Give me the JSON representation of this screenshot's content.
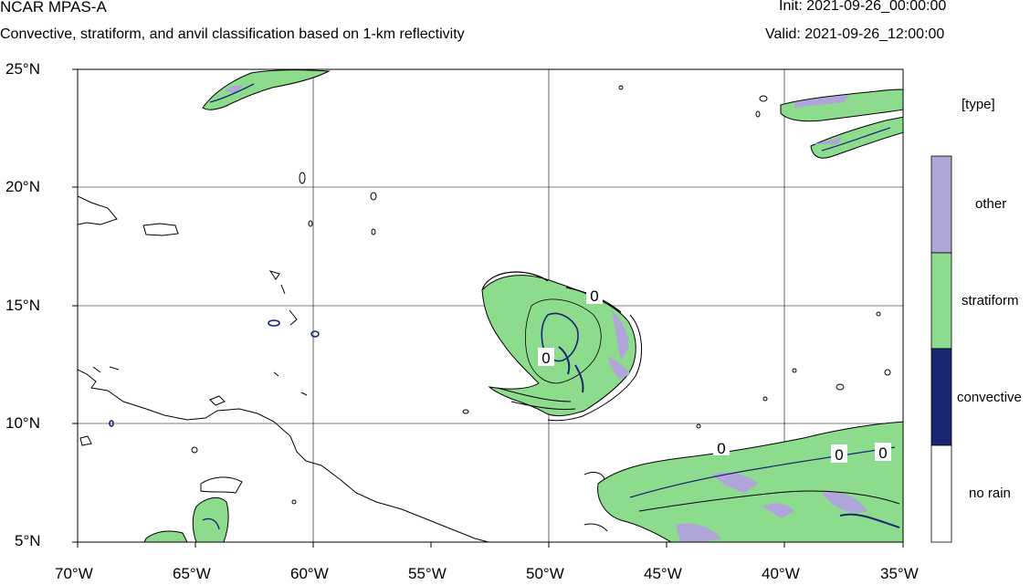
{
  "header": {
    "title": "NCAR MPAS-A",
    "subtitle": "Convective, stratiform, and anvil classification based on 1-km reflectivity",
    "init": "Init: 2021-09-26_00:00:00",
    "valid": "Valid: 2021-09-26_12:00:00"
  },
  "axes": {
    "lat_labels": [
      "25°N",
      "20°N",
      "15°N",
      "10°N",
      "5°N"
    ],
    "lon_labels": [
      "70°W",
      "65°W",
      "60°W",
      "55°W",
      "50°W",
      "45°W",
      "40°W",
      "35°W"
    ]
  },
  "legend": {
    "title": "[type]",
    "items": [
      {
        "label": "other",
        "color": "#b0a5d8"
      },
      {
        "label": "stratiform",
        "color": "#8ddc8e"
      },
      {
        "label": "convective",
        "color": "#1a2674"
      },
      {
        "label": "no rain",
        "color": "#ffffff"
      }
    ]
  },
  "contour_labels": [
    "0",
    "0",
    "0",
    "0",
    "0"
  ],
  "colors": {
    "stratiform": "#8ddc8e",
    "other": "#b0a5d8",
    "convective": "#1a2674",
    "coast": "#000000",
    "grid": "#000000"
  }
}
